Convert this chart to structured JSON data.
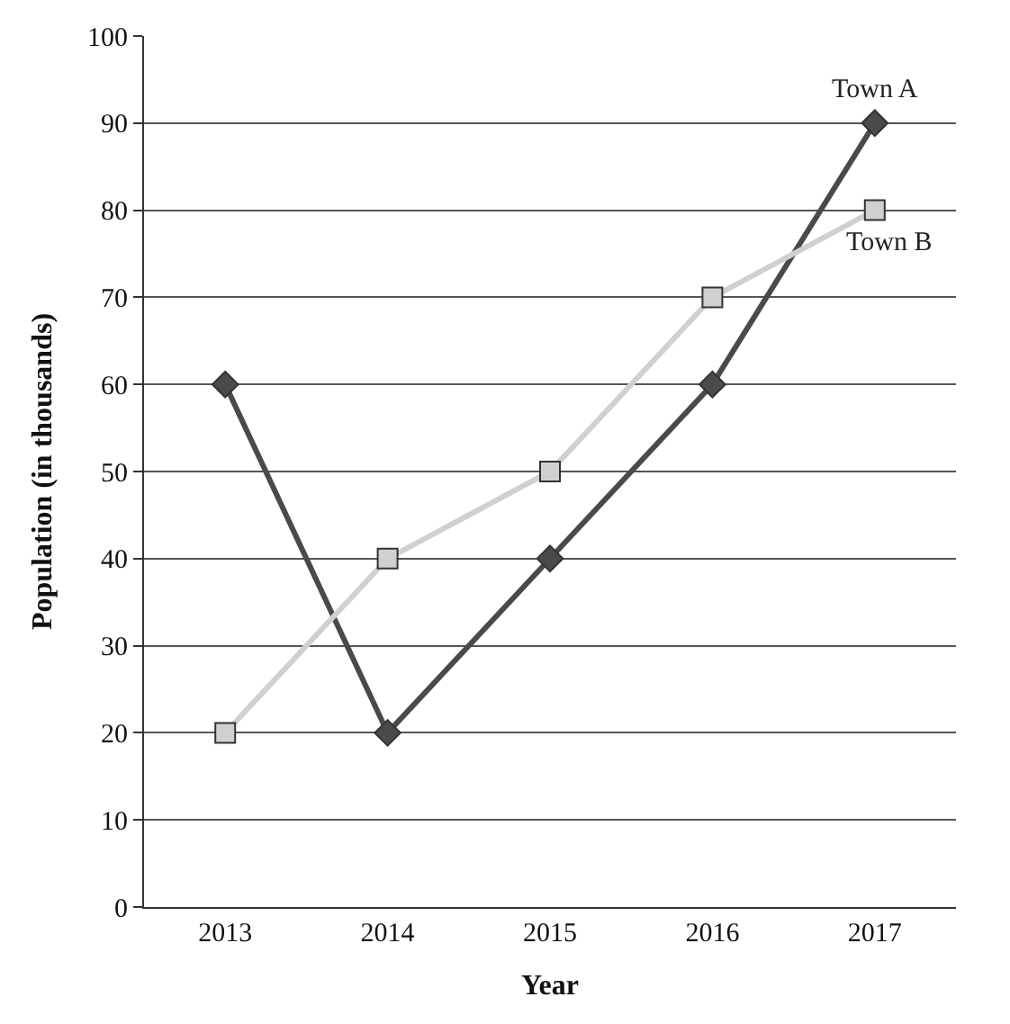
{
  "chart_data": {
    "type": "line",
    "xlabel": "Year",
    "ylabel": "Population (in thousands)",
    "categories": [
      "2013",
      "2014",
      "2015",
      "2016",
      "2017"
    ],
    "series": [
      {
        "name": "Town A",
        "color": "#4a4a4a",
        "values": [
          60,
          20,
          40,
          60,
          90
        ],
        "marker": "diamond"
      },
      {
        "name": "Town B",
        "color": "#d0d0d0",
        "values": [
          20,
          40,
          50,
          70,
          80
        ],
        "marker": "square"
      }
    ],
    "ylim": [
      0,
      100
    ],
    "yticks": [
      0,
      10,
      20,
      30,
      40,
      50,
      60,
      70,
      80,
      90,
      100
    ],
    "grid": "y",
    "legend": false,
    "line_style": "solid"
  }
}
